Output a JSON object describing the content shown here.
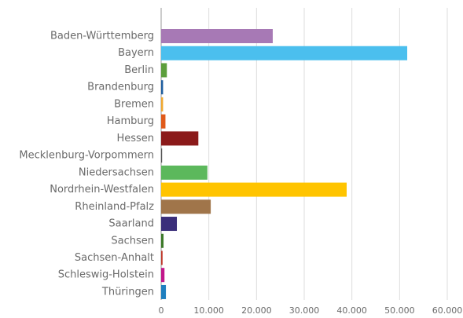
{
  "chart_data": {
    "type": "hbar",
    "categories": [
      "Baden-Württemberg",
      "Bayern",
      "Berlin",
      "Brandenburg",
      "Bremen",
      "Hamburg",
      "Hessen",
      "Mecklenburg-Vorpommern",
      "Niedersachsen",
      "Nordrhein-Westfalen",
      "Rheinland-Pfalz",
      "Saarland",
      "Sachsen",
      "Sachsen-Anhalt",
      "Schleswig-Holstein",
      "Thüringen"
    ],
    "values": [
      23400,
      51600,
      1200,
      400,
      400,
      900,
      7800,
      200,
      9700,
      38900,
      10400,
      3300,
      500,
      300,
      700,
      1000
    ],
    "colors": [
      "#a779b5",
      "#4bbfee",
      "#5c9e3c",
      "#1f5fa0",
      "#f0a830",
      "#e05a1a",
      "#8b1a1a",
      "#555555",
      "#5cb85c",
      "#ffc400",
      "#a0754a",
      "#3a2e7a",
      "#3d7a2a",
      "#c0392b",
      "#c2188b",
      "#1f7fbf"
    ],
    "xlim": [
      0,
      60000
    ],
    "xticks": [
      0,
      {
        "value": 10000,
        "label": "10.000"
      },
      {
        "value": 20000,
        "label": "20.000"
      },
      {
        "value": 30000,
        "label": "30.000"
      },
      {
        "value": 40000,
        "label": "40.000"
      },
      {
        "value": 50000,
        "label": "50.000"
      },
      {
        "value": 60000,
        "label": "60.000"
      }
    ],
    "grid": true
  }
}
